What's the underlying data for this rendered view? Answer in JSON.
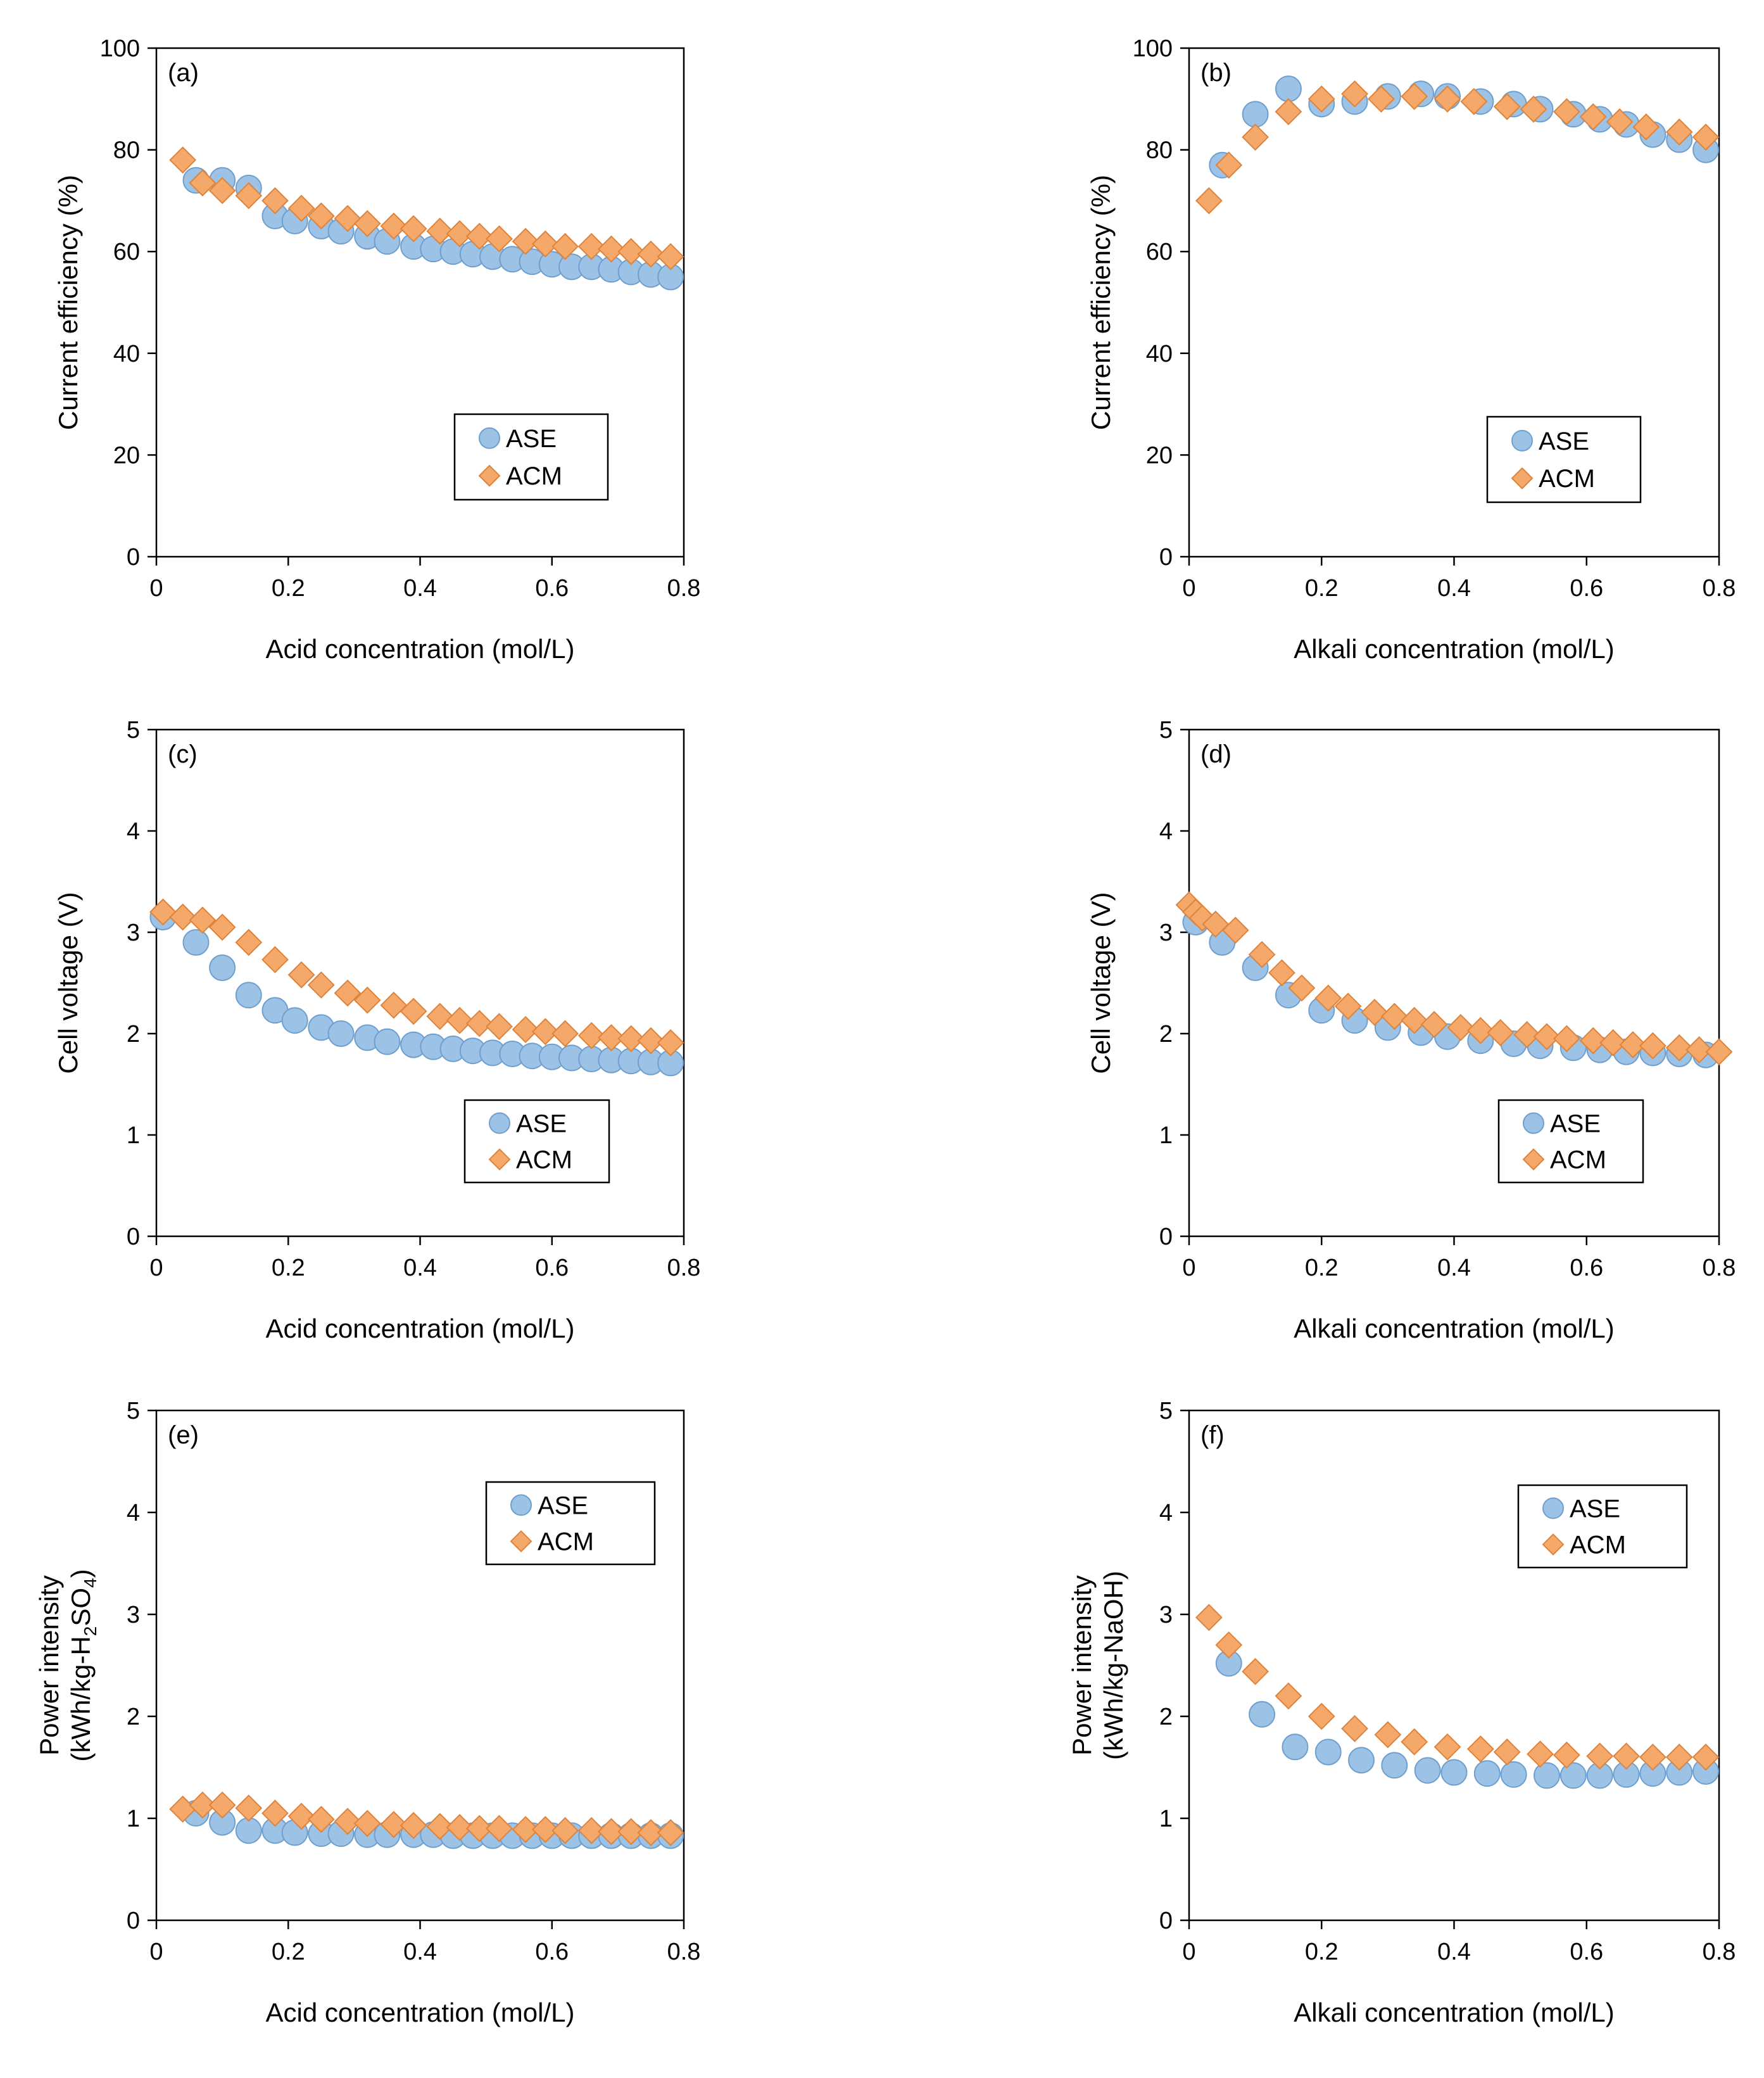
{
  "figure": {
    "colors": {
      "ASE": "#9cc3e5",
      "ASE_edge": "#6f9fcf",
      "ACM": "#f4a96b",
      "ACM_edge": "#e0833a",
      "axis": "#000000"
    }
  },
  "chart_data": [
    {
      "id": "a",
      "type": "scatter",
      "panel_label": "(a)",
      "xlabel": "Acid concentration (mol/L)",
      "ylabel": "Current efficiency (%)",
      "xlim": [
        0,
        0.8
      ],
      "ylim": [
        0,
        100
      ],
      "xticks": [
        "0",
        "0.2",
        "0.4",
        "0.6",
        "0.8"
      ],
      "yticks": [
        "0",
        "20",
        "40",
        "60",
        "80",
        "100"
      ],
      "legend": {
        "position": "center-right",
        "entries": [
          "ASE",
          "ACM"
        ]
      },
      "series": [
        {
          "name": "ASE",
          "marker": "circle",
          "x": [
            0.06,
            0.1,
            0.14,
            0.18,
            0.21,
            0.25,
            0.28,
            0.32,
            0.35,
            0.39,
            0.42,
            0.45,
            0.48,
            0.51,
            0.54,
            0.57,
            0.6,
            0.63,
            0.66,
            0.69,
            0.72,
            0.75,
            0.78
          ],
          "y": [
            74,
            74,
            72.5,
            67,
            66,
            65,
            64,
            63,
            62,
            61,
            60.5,
            60,
            59.5,
            59,
            58.5,
            58,
            57.5,
            57,
            57,
            56.5,
            56,
            55.5,
            55
          ]
        },
        {
          "name": "ACM",
          "marker": "diamond",
          "x": [
            0.04,
            0.07,
            0.1,
            0.14,
            0.18,
            0.22,
            0.25,
            0.29,
            0.32,
            0.36,
            0.39,
            0.43,
            0.46,
            0.49,
            0.52,
            0.56,
            0.59,
            0.62,
            0.66,
            0.69,
            0.72,
            0.75,
            0.78
          ],
          "y": [
            78,
            73.5,
            72,
            71,
            70,
            68.5,
            67,
            66.5,
            65.5,
            65,
            64.5,
            64,
            63.5,
            63,
            62.5,
            62,
            61.5,
            61,
            61,
            60.5,
            60,
            59.5,
            59
          ]
        }
      ]
    },
    {
      "id": "b",
      "type": "scatter",
      "panel_label": "(b)",
      "xlabel": "Alkali concentration (mol/L)",
      "ylabel": "Current efficiency (%)",
      "xlim": [
        0,
        0.8
      ],
      "ylim": [
        0,
        100
      ],
      "xticks": [
        "0",
        "0.2",
        "0.4",
        "0.6",
        "0.8"
      ],
      "yticks": [
        "0",
        "20",
        "40",
        "60",
        "80",
        "100"
      ],
      "legend": {
        "position": "center-right",
        "entries": [
          "ASE",
          "ACM"
        ]
      },
      "series": [
        {
          "name": "ASE",
          "marker": "circle",
          "x": [
            0.05,
            0.1,
            0.15,
            0.2,
            0.25,
            0.3,
            0.35,
            0.39,
            0.44,
            0.49,
            0.53,
            0.58,
            0.62,
            0.66,
            0.7,
            0.74,
            0.78
          ],
          "y": [
            77,
            87,
            92,
            89,
            89.5,
            90.5,
            91,
            90.5,
            89.5,
            89,
            88,
            87,
            86,
            85,
            83,
            82,
            80
          ]
        },
        {
          "name": "ACM",
          "marker": "diamond",
          "x": [
            0.03,
            0.06,
            0.1,
            0.15,
            0.2,
            0.25,
            0.29,
            0.34,
            0.39,
            0.43,
            0.48,
            0.52,
            0.57,
            0.61,
            0.65,
            0.69,
            0.74,
            0.78
          ],
          "y": [
            70,
            77,
            82.5,
            87.5,
            90,
            91,
            90,
            90.5,
            90,
            89.5,
            88.5,
            88,
            87.5,
            86.5,
            85.5,
            84.5,
            83.5,
            82.5
          ]
        }
      ]
    },
    {
      "id": "c",
      "type": "scatter",
      "panel_label": "(c)",
      "xlabel": "Acid concentration (mol/L)",
      "ylabel": "Cell voltage (V)",
      "xlim": [
        0,
        0.8
      ],
      "ylim": [
        0,
        5
      ],
      "xticks": [
        "0",
        "0.2",
        "0.4",
        "0.6",
        "0.8"
      ],
      "yticks": [
        "0",
        "1",
        "2",
        "3",
        "4",
        "5"
      ],
      "legend": {
        "position": "lower-right",
        "entries": [
          "ASE",
          "ACM"
        ]
      },
      "series": [
        {
          "name": "ASE",
          "marker": "circle",
          "x": [
            0.01,
            0.06,
            0.1,
            0.14,
            0.18,
            0.21,
            0.25,
            0.28,
            0.32,
            0.35,
            0.39,
            0.42,
            0.45,
            0.48,
            0.51,
            0.54,
            0.57,
            0.6,
            0.63,
            0.66,
            0.69,
            0.72,
            0.75,
            0.78
          ],
          "y": [
            3.15,
            2.9,
            2.65,
            2.38,
            2.23,
            2.13,
            2.06,
            2.0,
            1.96,
            1.92,
            1.89,
            1.87,
            1.85,
            1.83,
            1.81,
            1.8,
            1.78,
            1.77,
            1.76,
            1.75,
            1.74,
            1.73,
            1.72,
            1.71
          ]
        },
        {
          "name": "ACM",
          "marker": "diamond",
          "x": [
            0.01,
            0.04,
            0.07,
            0.1,
            0.14,
            0.18,
            0.22,
            0.25,
            0.29,
            0.32,
            0.36,
            0.39,
            0.43,
            0.46,
            0.49,
            0.52,
            0.56,
            0.59,
            0.62,
            0.66,
            0.69,
            0.72,
            0.75,
            0.78
          ],
          "y": [
            3.2,
            3.15,
            3.12,
            3.05,
            2.9,
            2.73,
            2.58,
            2.48,
            2.4,
            2.33,
            2.28,
            2.22,
            2.17,
            2.13,
            2.1,
            2.07,
            2.04,
            2.02,
            2.0,
            1.98,
            1.96,
            1.95,
            1.93,
            1.91
          ]
        }
      ]
    },
    {
      "id": "d",
      "type": "scatter",
      "panel_label": "(d)",
      "xlabel": "Alkali concentration (mol/L)",
      "ylabel": "Cell voltage (V)",
      "xlim": [
        0,
        0.8
      ],
      "ylim": [
        0,
        5
      ],
      "xticks": [
        "0",
        "0.2",
        "0.4",
        "0.6",
        "0.8"
      ],
      "yticks": [
        "0",
        "1",
        "2",
        "3",
        "4",
        "5"
      ],
      "legend": {
        "position": "lower-right",
        "entries": [
          "ASE",
          "ACM"
        ]
      },
      "series": [
        {
          "name": "ASE",
          "marker": "circle",
          "x": [
            0.01,
            0.05,
            0.1,
            0.15,
            0.2,
            0.25,
            0.3,
            0.35,
            0.39,
            0.44,
            0.49,
            0.53,
            0.58,
            0.62,
            0.66,
            0.7,
            0.74,
            0.78
          ],
          "y": [
            3.1,
            2.9,
            2.65,
            2.38,
            2.23,
            2.13,
            2.06,
            2.01,
            1.97,
            1.93,
            1.9,
            1.88,
            1.86,
            1.84,
            1.82,
            1.81,
            1.8,
            1.79
          ]
        },
        {
          "name": "ACM",
          "marker": "diamond",
          "x": [
            0.0,
            0.01,
            0.02,
            0.04,
            0.07,
            0.11,
            0.14,
            0.17,
            0.21,
            0.24,
            0.28,
            0.31,
            0.34,
            0.37,
            0.41,
            0.44,
            0.47,
            0.51,
            0.54,
            0.57,
            0.61,
            0.64,
            0.67,
            0.7,
            0.74,
            0.77,
            0.8
          ],
          "y": [
            3.27,
            3.2,
            3.14,
            3.08,
            3.02,
            2.78,
            2.6,
            2.45,
            2.35,
            2.27,
            2.21,
            2.17,
            2.13,
            2.09,
            2.06,
            2.03,
            2.01,
            1.99,
            1.97,
            1.95,
            1.93,
            1.91,
            1.89,
            1.88,
            1.86,
            1.84,
            1.82
          ]
        }
      ]
    },
    {
      "id": "e",
      "type": "scatter",
      "panel_label": "(e)",
      "xlabel": "Acid concentration (mol/L)",
      "ylabel_lines": [
        "Power intensity",
        "(kWh/kg-H",
        "2",
        "SO",
        "4",
        ")"
      ],
      "xlim": [
        0,
        0.8
      ],
      "ylim": [
        0,
        5
      ],
      "xticks": [
        "0",
        "0.2",
        "0.4",
        "0.6",
        "0.8"
      ],
      "yticks": [
        "0",
        "1",
        "2",
        "3",
        "4",
        "5"
      ],
      "legend": {
        "position": "top-right",
        "entries": [
          "ASE",
          "ACM"
        ]
      },
      "series": [
        {
          "name": "ASE",
          "marker": "circle",
          "x": [
            0.06,
            0.1,
            0.14,
            0.18,
            0.21,
            0.25,
            0.28,
            0.32,
            0.35,
            0.39,
            0.42,
            0.45,
            0.48,
            0.51,
            0.54,
            0.57,
            0.6,
            0.63,
            0.66,
            0.69,
            0.72,
            0.75,
            0.78
          ],
          "y": [
            1.05,
            0.96,
            0.88,
            0.88,
            0.86,
            0.85,
            0.85,
            0.84,
            0.84,
            0.84,
            0.84,
            0.83,
            0.83,
            0.83,
            0.83,
            0.83,
            0.83,
            0.83,
            0.83,
            0.83,
            0.83,
            0.83,
            0.83
          ]
        },
        {
          "name": "ACM",
          "marker": "diamond",
          "x": [
            0.04,
            0.07,
            0.1,
            0.14,
            0.18,
            0.22,
            0.25,
            0.29,
            0.32,
            0.36,
            0.39,
            0.43,
            0.46,
            0.49,
            0.52,
            0.56,
            0.59,
            0.62,
            0.66,
            0.69,
            0.72,
            0.75,
            0.78
          ],
          "y": [
            1.09,
            1.13,
            1.13,
            1.1,
            1.05,
            1.02,
            0.99,
            0.97,
            0.95,
            0.94,
            0.93,
            0.92,
            0.91,
            0.9,
            0.9,
            0.89,
            0.89,
            0.88,
            0.88,
            0.87,
            0.87,
            0.86,
            0.86
          ]
        }
      ]
    },
    {
      "id": "f",
      "type": "scatter",
      "panel_label": "(f)",
      "xlabel": "Alkali concentration (mol/L)",
      "ylabel_lines": [
        "Power intensity",
        "(kWh/kg-NaOH)"
      ],
      "xlim": [
        0,
        0.8
      ],
      "ylim": [
        0,
        5
      ],
      "xticks": [
        "0",
        "0.2",
        "0.4",
        "0.6",
        "0.8"
      ],
      "yticks": [
        "0",
        "1",
        "2",
        "3",
        "4",
        "5"
      ],
      "legend": {
        "position": "top-right",
        "entries": [
          "ASE",
          "ACM"
        ]
      },
      "series": [
        {
          "name": "ASE",
          "marker": "circle",
          "x": [
            0.06,
            0.11,
            0.16,
            0.21,
            0.26,
            0.31,
            0.36,
            0.4,
            0.45,
            0.49,
            0.54,
            0.58,
            0.62,
            0.66,
            0.7,
            0.74,
            0.78
          ],
          "y": [
            2.52,
            2.02,
            1.7,
            1.65,
            1.57,
            1.52,
            1.47,
            1.45,
            1.44,
            1.43,
            1.42,
            1.42,
            1.42,
            1.43,
            1.44,
            1.45,
            1.46
          ]
        },
        {
          "name": "ACM",
          "marker": "diamond",
          "x": [
            0.03,
            0.06,
            0.1,
            0.15,
            0.2,
            0.25,
            0.3,
            0.34,
            0.39,
            0.44,
            0.48,
            0.53,
            0.57,
            0.62,
            0.66,
            0.7,
            0.74,
            0.78
          ],
          "y": [
            2.97,
            2.7,
            2.44,
            2.2,
            2.0,
            1.88,
            1.82,
            1.75,
            1.7,
            1.68,
            1.65,
            1.63,
            1.62,
            1.61,
            1.61,
            1.6,
            1.6,
            1.6
          ]
        }
      ]
    }
  ]
}
